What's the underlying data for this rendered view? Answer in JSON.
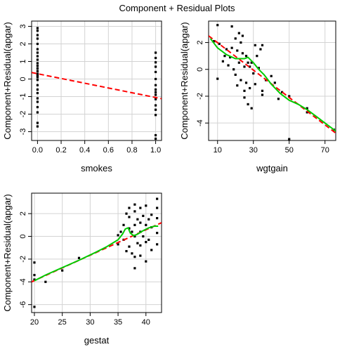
{
  "figure": {
    "title": "Component + Residual Plots"
  },
  "colors": {
    "points": "#000000",
    "linear_fit": "#ff0000",
    "smooth_fit": "#00cc00",
    "grid": "#d3d3d3",
    "frame": "#000000"
  },
  "chart_data": [
    {
      "type": "scatter",
      "xlabel": "smokes",
      "ylabel": "Component+Residual(apgar)",
      "xlim": [
        -0.05,
        1.05
      ],
      "ylim": [
        -3.5,
        3.3
      ],
      "xticks": [
        0.0,
        0.2,
        0.4,
        0.6,
        0.8,
        1.0
      ],
      "xtick_labels": [
        "0.0",
        "0.2",
        "0.4",
        "0.6",
        "0.8",
        "1.0"
      ],
      "yticks": [
        -3,
        -2,
        -1,
        0,
        1,
        2,
        3
      ],
      "ytick_labels": [
        "-3",
        "-2",
        "-1",
        "0",
        "1",
        "2",
        "3"
      ],
      "grid": true,
      "points": [
        [
          0,
          2.9
        ],
        [
          0,
          2.75
        ],
        [
          0,
          2.5
        ],
        [
          0,
          2.3
        ],
        [
          0,
          2.0
        ],
        [
          0,
          1.7
        ],
        [
          0,
          1.5
        ],
        [
          0,
          1.3
        ],
        [
          0,
          1.1
        ],
        [
          0,
          0.9
        ],
        [
          0,
          0.75
        ],
        [
          0,
          0.6
        ],
        [
          0,
          0.45
        ],
        [
          0,
          0.3
        ],
        [
          0,
          0.2
        ],
        [
          0,
          0.1
        ],
        [
          0,
          -0.05
        ],
        [
          0,
          -0.35
        ],
        [
          0,
          -0.6
        ],
        [
          0,
          -0.8
        ],
        [
          0,
          -1.1
        ],
        [
          0,
          -1.3
        ],
        [
          0,
          -1.6
        ],
        [
          0,
          -1.9
        ],
        [
          0,
          -2.5
        ],
        [
          0,
          -2.7
        ],
        [
          1,
          1.5
        ],
        [
          1,
          1.2
        ],
        [
          1,
          0.95
        ],
        [
          1,
          0.7
        ],
        [
          1,
          0.4
        ],
        [
          1,
          0.0
        ],
        [
          1,
          -0.35
        ],
        [
          1,
          -0.6
        ],
        [
          1,
          -0.75
        ],
        [
          1,
          -0.9
        ],
        [
          1,
          -1.15
        ],
        [
          1,
          -1.5
        ],
        [
          1,
          -1.75
        ],
        [
          1,
          -2.05
        ],
        [
          1,
          -3.2
        ],
        [
          1,
          -3.4
        ]
      ],
      "linear_fit": [
        [
          -0.05,
          0.37
        ],
        [
          1.05,
          -1.12
        ]
      ],
      "smooth_fit": null
    },
    {
      "type": "scatter",
      "xlabel": "wgtgain",
      "ylabel": "Component+Residual(apgar)",
      "xlim": [
        5,
        76
      ],
      "ylim": [
        -5.3,
        3.6
      ],
      "xticks": [
        10,
        30,
        50,
        70
      ],
      "xtick_labels": [
        "10",
        "30",
        "50",
        "70"
      ],
      "yticks": [
        -4,
        -2,
        0,
        2
      ],
      "ytick_labels": [
        "-4",
        "-2",
        "0",
        "2"
      ],
      "grid": true,
      "points": [
        [
          8,
          2.1
        ],
        [
          10,
          3.3
        ],
        [
          10,
          -0.7
        ],
        [
          11,
          1.9
        ],
        [
          13,
          0.6
        ],
        [
          14,
          1.0
        ],
        [
          15,
          1.5
        ],
        [
          16,
          0.3
        ],
        [
          17,
          0.9
        ],
        [
          18,
          1.6
        ],
        [
          18,
          3.2
        ],
        [
          19,
          0.0
        ],
        [
          20,
          -0.4
        ],
        [
          20,
          2.3
        ],
        [
          21,
          1.4
        ],
        [
          21,
          -1.2
        ],
        [
          22,
          2.7
        ],
        [
          22,
          0.5
        ],
        [
          23,
          2.0
        ],
        [
          23,
          -0.8
        ],
        [
          24,
          1.2
        ],
        [
          24,
          2.5
        ],
        [
          25,
          -2.1
        ],
        [
          25,
          0.2
        ],
        [
          25,
          -1.6
        ],
        [
          26,
          1.0
        ],
        [
          26,
          -1.0
        ],
        [
          27,
          0.5
        ],
        [
          27,
          -2.6
        ],
        [
          28,
          0.2
        ],
        [
          28,
          -1.4
        ],
        [
          29,
          -2.9
        ],
        [
          29,
          0.5
        ],
        [
          30,
          -0.3
        ],
        [
          31,
          1.8
        ],
        [
          31,
          -1.1
        ],
        [
          32,
          1.0
        ],
        [
          33,
          0.1
        ],
        [
          34,
          1.5
        ],
        [
          35,
          -1.6
        ],
        [
          35,
          1.8
        ],
        [
          35,
          -1.9
        ],
        [
          37,
          -0.8
        ],
        [
          40,
          -0.5
        ],
        [
          42,
          -1.0
        ],
        [
          44,
          -2.2
        ],
        [
          46,
          -1.7
        ],
        [
          50,
          -5.2
        ],
        [
          50,
          -2.0
        ],
        [
          60,
          -2.9
        ],
        [
          60,
          -3.2
        ],
        [
          75,
          -4.5
        ]
      ],
      "linear_fit": [
        [
          5,
          2.5
        ],
        [
          76,
          -4.75
        ]
      ],
      "smooth_fit": [
        [
          6,
          2.3
        ],
        [
          10,
          1.6
        ],
        [
          15,
          1.1
        ],
        [
          20,
          0.8
        ],
        [
          25,
          0.8
        ],
        [
          27,
          0.9
        ],
        [
          30,
          0.5
        ],
        [
          33,
          0.0
        ],
        [
          36,
          -0.4
        ],
        [
          40,
          -1.1
        ],
        [
          45,
          -1.8
        ],
        [
          50,
          -2.3
        ],
        [
          55,
          -2.6
        ],
        [
          60,
          -3.0
        ],
        [
          65,
          -3.5
        ],
        [
          70,
          -4.0
        ],
        [
          76,
          -4.6
        ]
      ]
    },
    {
      "type": "scatter",
      "xlabel": "gestat",
      "ylabel": "Component+Residual(apgar)",
      "xlim": [
        19.5,
        42.8
      ],
      "ylim": [
        -6.7,
        3.8
      ],
      "xticks": [
        20,
        25,
        30,
        35,
        40
      ],
      "xtick_labels": [
        "20",
        "25",
        "30",
        "35",
        "40"
      ],
      "yticks": [
        -6,
        -4,
        -2,
        0,
        2
      ],
      "ytick_labels": [
        "-6",
        "-4",
        "-2",
        "0",
        "2"
      ],
      "grid": true,
      "points": [
        [
          20,
          -6.2
        ],
        [
          20,
          -2.3
        ],
        [
          20,
          -3.4
        ],
        [
          20,
          -3.8
        ],
        [
          22,
          -4.0
        ],
        [
          25,
          -3.0
        ],
        [
          28,
          -1.9
        ],
        [
          35,
          0.1
        ],
        [
          35,
          -0.7
        ],
        [
          35.5,
          0.4
        ],
        [
          36,
          1.0
        ],
        [
          36,
          -0.3
        ],
        [
          36.5,
          2.0
        ],
        [
          36.5,
          -1.3
        ],
        [
          37,
          2.5
        ],
        [
          37,
          1.7
        ],
        [
          37,
          0.7
        ],
        [
          37,
          -0.9
        ],
        [
          37.5,
          0.4
        ],
        [
          37.5,
          -1.5
        ],
        [
          38,
          2.8
        ],
        [
          38,
          2.2
        ],
        [
          38,
          1.0
        ],
        [
          38,
          0.0
        ],
        [
          38,
          -1.8
        ],
        [
          38,
          -2.8
        ],
        [
          38.5,
          1.5
        ],
        [
          38.5,
          -0.6
        ],
        [
          39,
          2.5
        ],
        [
          39,
          1.2
        ],
        [
          39,
          0.4
        ],
        [
          39,
          -0.8
        ],
        [
          39,
          -1.7
        ],
        [
          39.5,
          1.8
        ],
        [
          39.5,
          0.0
        ],
        [
          40,
          2.7
        ],
        [
          40,
          1.0
        ],
        [
          40,
          -0.5
        ],
        [
          40,
          -2.2
        ],
        [
          40.5,
          1.5
        ],
        [
          40.5,
          -0.3
        ],
        [
          41,
          1.9
        ],
        [
          41,
          0.8
        ],
        [
          41,
          -1.2
        ],
        [
          42,
          3.3
        ],
        [
          42,
          2.5
        ],
        [
          42,
          1.6
        ],
        [
          42,
          0.3
        ],
        [
          42,
          -0.7
        ]
      ],
      "linear_fit": [
        [
          19.5,
          -4.0
        ],
        [
          42.8,
          1.2
        ]
      ],
      "smooth_fit": [
        [
          20,
          -3.9
        ],
        [
          22,
          -3.4
        ],
        [
          25,
          -2.75
        ],
        [
          28,
          -2.1
        ],
        [
          31,
          -1.4
        ],
        [
          33,
          -0.9
        ],
        [
          35,
          -0.3
        ],
        [
          35.8,
          0.2
        ],
        [
          36.3,
          0.65
        ],
        [
          36.8,
          0.75
        ],
        [
          37.2,
          0.3
        ],
        [
          37.8,
          0.05
        ],
        [
          38.5,
          0.2
        ],
        [
          39.5,
          0.5
        ],
        [
          40.5,
          0.75
        ],
        [
          41.5,
          0.9
        ],
        [
          42.2,
          0.9
        ]
      ]
    }
  ]
}
